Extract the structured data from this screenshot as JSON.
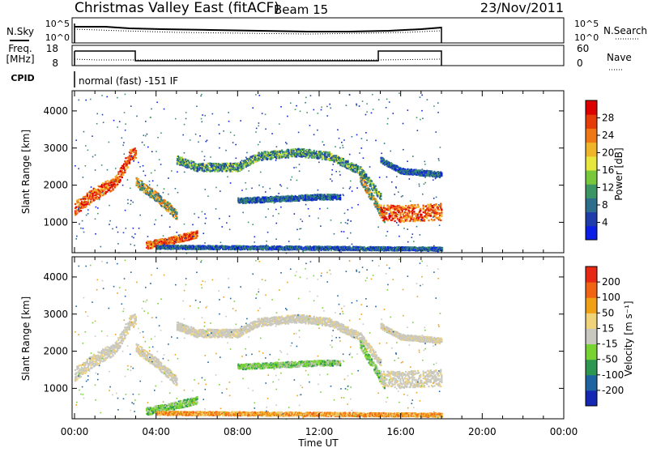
{
  "header": {
    "station": "Christmas Valley East (fitACF)",
    "beam": "Beam 15",
    "date": "23/Nov/2011"
  },
  "panels": {
    "nsky": {
      "left_label": "N.Sky",
      "left_ticks": [
        "10^5",
        "10^0"
      ],
      "right_ticks": [
        "10^5",
        "10^0"
      ],
      "right_label": "N.Search"
    },
    "freq": {
      "left_label_line1": "Freq.",
      "left_label_line2": "[MHz]",
      "left_ticks": [
        "18",
        "8"
      ],
      "right_ticks": [
        "60",
        "0"
      ],
      "right_label": "Nave"
    },
    "cpid": {
      "label": "CPID",
      "text": "normal (fast) -151 IF"
    }
  },
  "chart_data": [
    {
      "type": "heatmap",
      "name": "power",
      "ylabel": "Slant Range [km]",
      "yticks": [
        1000,
        2000,
        3000,
        4000
      ],
      "ylim": [
        180,
        4500
      ],
      "xlim": [
        0,
        24
      ],
      "colorbar": {
        "label": "Power [dB]",
        "ticks": [
          4,
          8,
          12,
          16,
          20,
          24,
          28
        ],
        "colors": [
          "#0a1ee6",
          "#1e3caa",
          "#2d6e8c",
          "#3c9664",
          "#78c83c",
          "#e6e63c",
          "#f0b428",
          "#f07814",
          "#e63c0a",
          "#dc0000"
        ]
      }
    },
    {
      "type": "heatmap",
      "name": "velocity",
      "ylabel": "Slant Range [km]",
      "yticks": [
        1000,
        2000,
        3000,
        4000
      ],
      "ylim": [
        180,
        4500
      ],
      "xlim": [
        0,
        24
      ],
      "xlabel": "Time UT",
      "xticks": [
        "00:00",
        "04:00",
        "08:00",
        "12:00",
        "16:00",
        "20:00",
        "00:00"
      ],
      "colorbar": {
        "label": "Velocity [m s⁻¹]",
        "ticks": [
          200,
          100,
          50,
          15,
          -15,
          -50,
          -100,
          -200
        ],
        "colors": [
          "#1428b4",
          "#1e64a0",
          "#2d9650",
          "#78d232",
          "#c8c8c0",
          "#f0d278",
          "#f0a014",
          "#f06414",
          "#e62814"
        ]
      }
    }
  ]
}
